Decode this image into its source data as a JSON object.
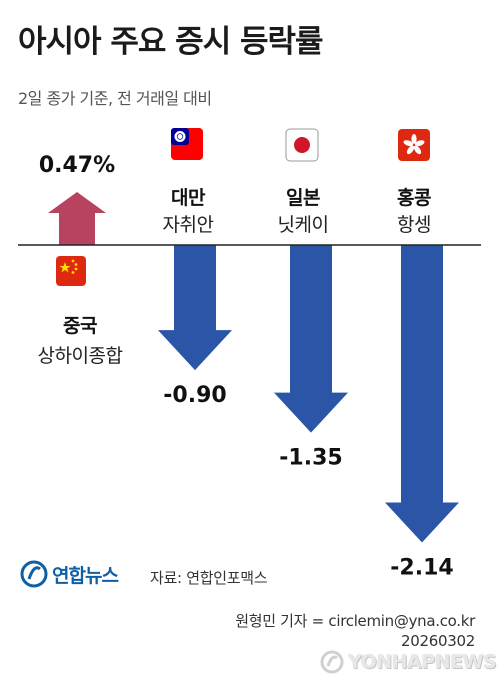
{
  "header": {
    "title": "아시아 주요 증시 등락률",
    "subtitle": "2일 종가 기준, 전 거래일 대비"
  },
  "chart_data": {
    "type": "bar",
    "categories": [
      "중국",
      "대만",
      "일본",
      "홍콩"
    ],
    "index_names": [
      "상하이종합",
      "자취안",
      "닛케이",
      "항셍"
    ],
    "values": [
      0.47,
      -0.9,
      -1.35,
      -2.14
    ],
    "value_labels": [
      "0.47%",
      "-0.90",
      "-1.35",
      "-2.14"
    ],
    "colors": {
      "up": "#b84360",
      "down": "#2b56a8",
      "baseline": "#222222"
    }
  },
  "flags": [
    "china-flag-icon",
    "taiwan-flag-icon",
    "japan-flag-icon",
    "hongkong-flag-icon"
  ],
  "footer": {
    "logo_text": "연합뉴스",
    "source": "자료: 연합인포맥스",
    "credit_line1": "원형민 기자 = circlemin@yna.co.kr",
    "credit_line2": "20260302",
    "watermark": "YONHAPNEWS"
  }
}
